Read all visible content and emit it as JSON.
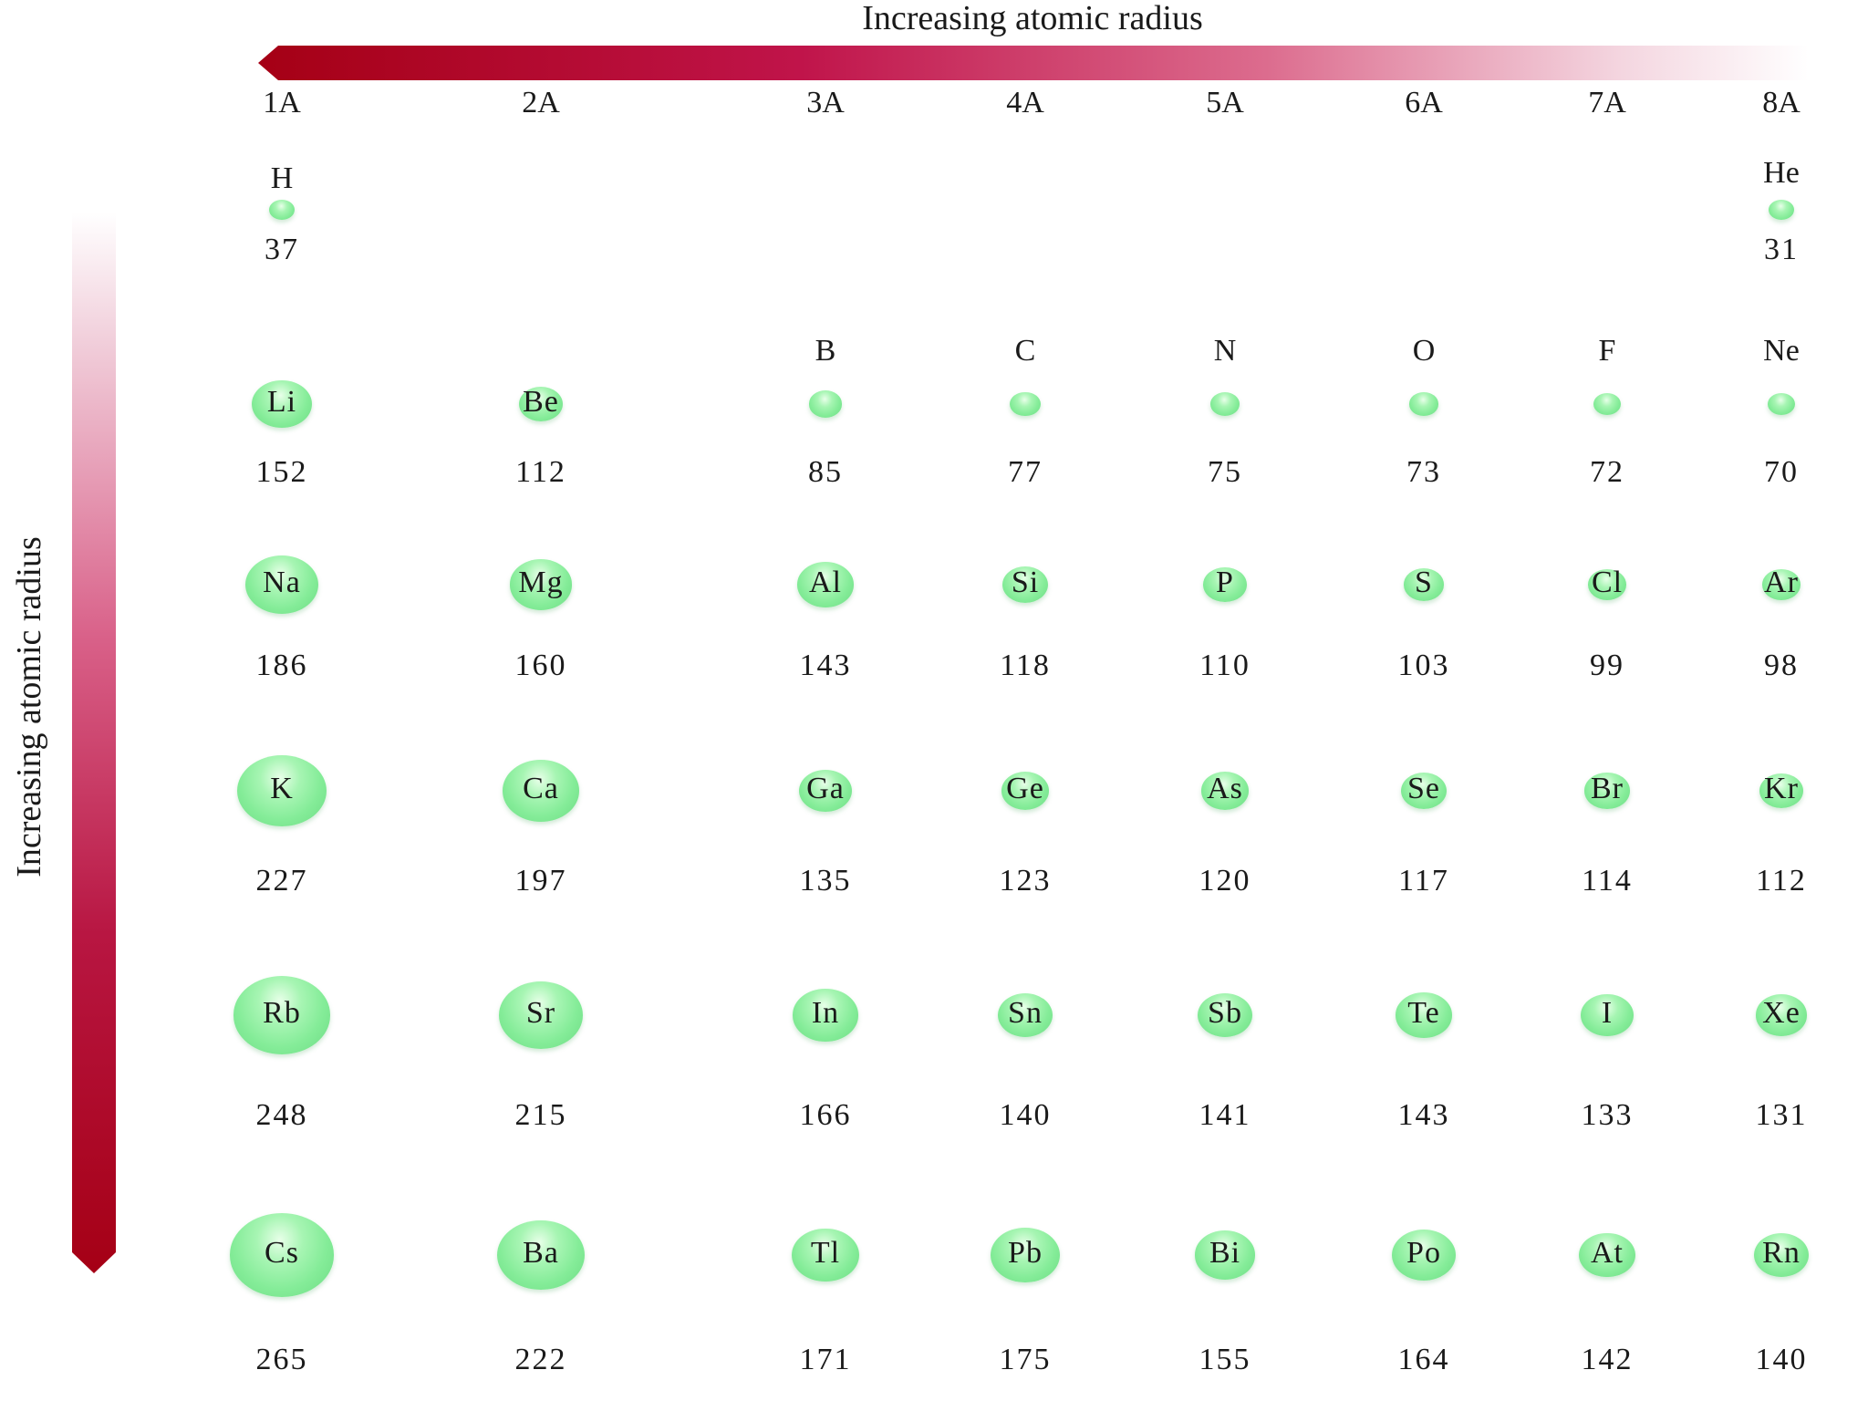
{
  "title_horizontal": "Increasing atomic radius",
  "title_vertical": "Increasing atomic radius",
  "colors": {
    "arrow": "#a50015",
    "arrow_light": "#f4d6e0",
    "sphere": "#84ec98",
    "sphere_highlight": "#e8ffe9"
  },
  "groups": [
    "1A",
    "2A",
    "3A",
    "4A",
    "5A",
    "6A",
    "7A",
    "8A"
  ],
  "periods": [
    [
      {
        "symbol": "H",
        "radius": "37"
      },
      null,
      null,
      null,
      null,
      null,
      null,
      {
        "symbol": "He",
        "radius": "31"
      }
    ],
    [
      {
        "symbol": "Li",
        "radius": "152"
      },
      {
        "symbol": "Be",
        "radius": "112"
      },
      {
        "symbol": "B",
        "radius": "85"
      },
      {
        "symbol": "C",
        "radius": "77"
      },
      {
        "symbol": "N",
        "radius": "75"
      },
      {
        "symbol": "O",
        "radius": "73"
      },
      {
        "symbol": "F",
        "radius": "72"
      },
      {
        "symbol": "Ne",
        "radius": "70"
      }
    ],
    [
      {
        "symbol": "Na",
        "radius": "186"
      },
      {
        "symbol": "Mg",
        "radius": "160"
      },
      {
        "symbol": "Al",
        "radius": "143"
      },
      {
        "symbol": "Si",
        "radius": "118"
      },
      {
        "symbol": "P",
        "radius": "110"
      },
      {
        "symbol": "S",
        "radius": "103"
      },
      {
        "symbol": "Cl",
        "radius": "99"
      },
      {
        "symbol": "Ar",
        "radius": "98"
      }
    ],
    [
      {
        "symbol": "K",
        "radius": "227"
      },
      {
        "symbol": "Ca",
        "radius": "197"
      },
      {
        "symbol": "Ga",
        "radius": "135"
      },
      {
        "symbol": "Ge",
        "radius": "123"
      },
      {
        "symbol": "As",
        "radius": "120"
      },
      {
        "symbol": "Se",
        "radius": "117"
      },
      {
        "symbol": "Br",
        "radius": "114"
      },
      {
        "symbol": "Kr",
        "radius": "112"
      }
    ],
    [
      {
        "symbol": "Rb",
        "radius": "248"
      },
      {
        "symbol": "Sr",
        "radius": "215"
      },
      {
        "symbol": "In",
        "radius": "166"
      },
      {
        "symbol": "Sn",
        "radius": "140"
      },
      {
        "symbol": "Sb",
        "radius": "141"
      },
      {
        "symbol": "Te",
        "radius": "143"
      },
      {
        "symbol": "I",
        "radius": "133"
      },
      {
        "symbol": "Xe",
        "radius": "131"
      }
    ],
    [
      {
        "symbol": "Cs",
        "radius": "265"
      },
      {
        "symbol": "Ba",
        "radius": "222"
      },
      {
        "symbol": "Tl",
        "radius": "171"
      },
      {
        "symbol": "Pb",
        "radius": "175"
      },
      {
        "symbol": "Bi",
        "radius": "155"
      },
      {
        "symbol": "Po",
        "radius": "164"
      },
      {
        "symbol": "At",
        "radius": "142"
      },
      {
        "symbol": "Rn",
        "radius": "140"
      }
    ]
  ]
}
